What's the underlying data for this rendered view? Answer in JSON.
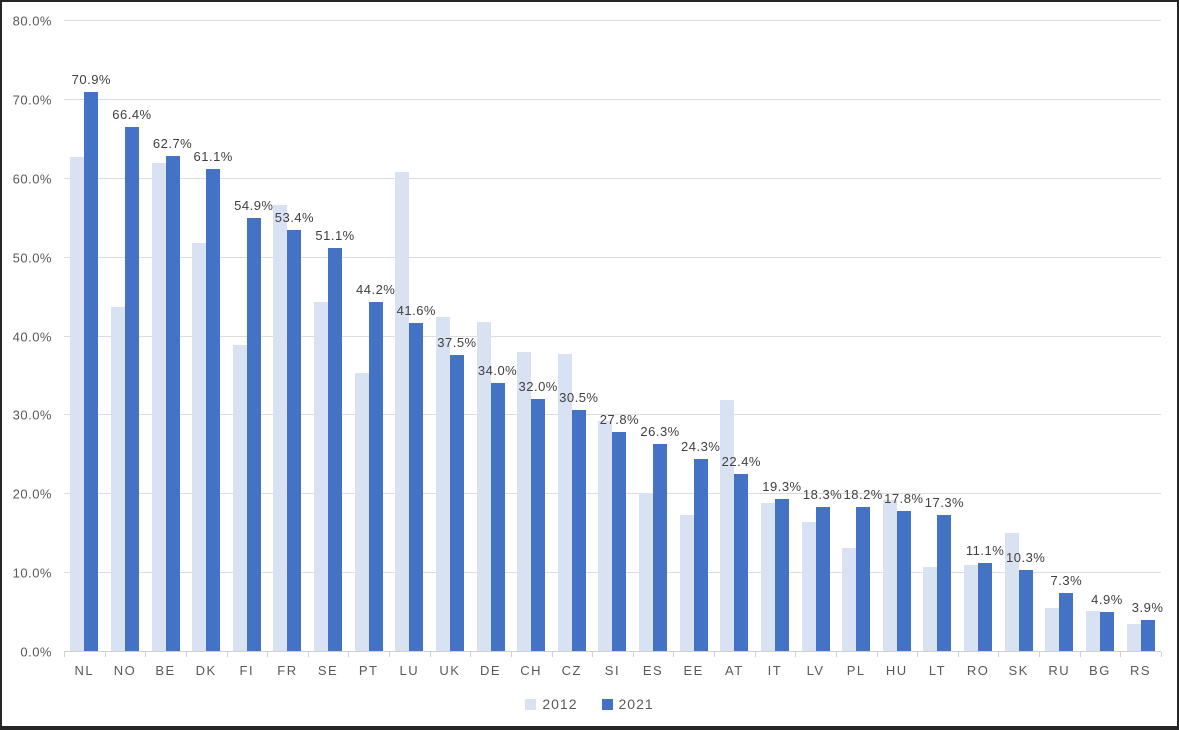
{
  "chart_data": {
    "type": "bar",
    "title": "",
    "xlabel": "",
    "ylabel": "",
    "grid": true,
    "legend_position": "bottom",
    "ylim": [
      0,
      80
    ],
    "ytick_values": [
      0,
      10,
      20,
      30,
      40,
      50,
      60,
      70,
      80
    ],
    "ytick_labels": [
      "0.0%",
      "10.0%",
      "20.0%",
      "30.0%",
      "40.0%",
      "50.0%",
      "60.0%",
      "70.0%",
      "80.0%"
    ],
    "categories": [
      "NL",
      "NO",
      "BE",
      "DK",
      "FI",
      "FR",
      "SE",
      "PT",
      "LU",
      "UK",
      "DE",
      "CH",
      "CZ",
      "SI",
      "ES",
      "EE",
      "AT",
      "IT",
      "LV",
      "PL",
      "HU",
      "LT",
      "RO",
      "SK",
      "RU",
      "BG",
      "RS"
    ],
    "series": [
      {
        "name": "2012",
        "color": "#d9e2f3",
        "data_labels": false,
        "values": [
          62.6,
          43.6,
          61.9,
          51.7,
          38.8,
          56.5,
          44.3,
          35.2,
          60.7,
          42.4,
          41.7,
          37.9,
          37.7,
          29.1,
          20.0,
          17.2,
          31.8,
          18.8,
          16.3,
          13.1,
          19.2,
          10.7,
          10.9,
          14.9,
          5.5,
          5.1,
          3.4
        ]
      },
      {
        "name": "2021",
        "color": "#4472c4",
        "data_labels": true,
        "values": [
          70.9,
          66.4,
          62.7,
          61.1,
          54.9,
          53.4,
          51.1,
          44.2,
          41.6,
          37.5,
          34.0,
          32.0,
          30.5,
          27.8,
          26.3,
          24.3,
          22.4,
          19.3,
          18.3,
          18.2,
          17.8,
          17.3,
          11.1,
          10.3,
          7.3,
          4.9,
          3.9
        ]
      }
    ]
  },
  "legend": {
    "items": [
      {
        "label": "2012"
      },
      {
        "label": "2021"
      }
    ]
  },
  "style": {
    "gridline_color": "#dcdcdc",
    "axis_text_color": "#595959",
    "data_label_color": "#404040",
    "background": "#ffffff"
  }
}
